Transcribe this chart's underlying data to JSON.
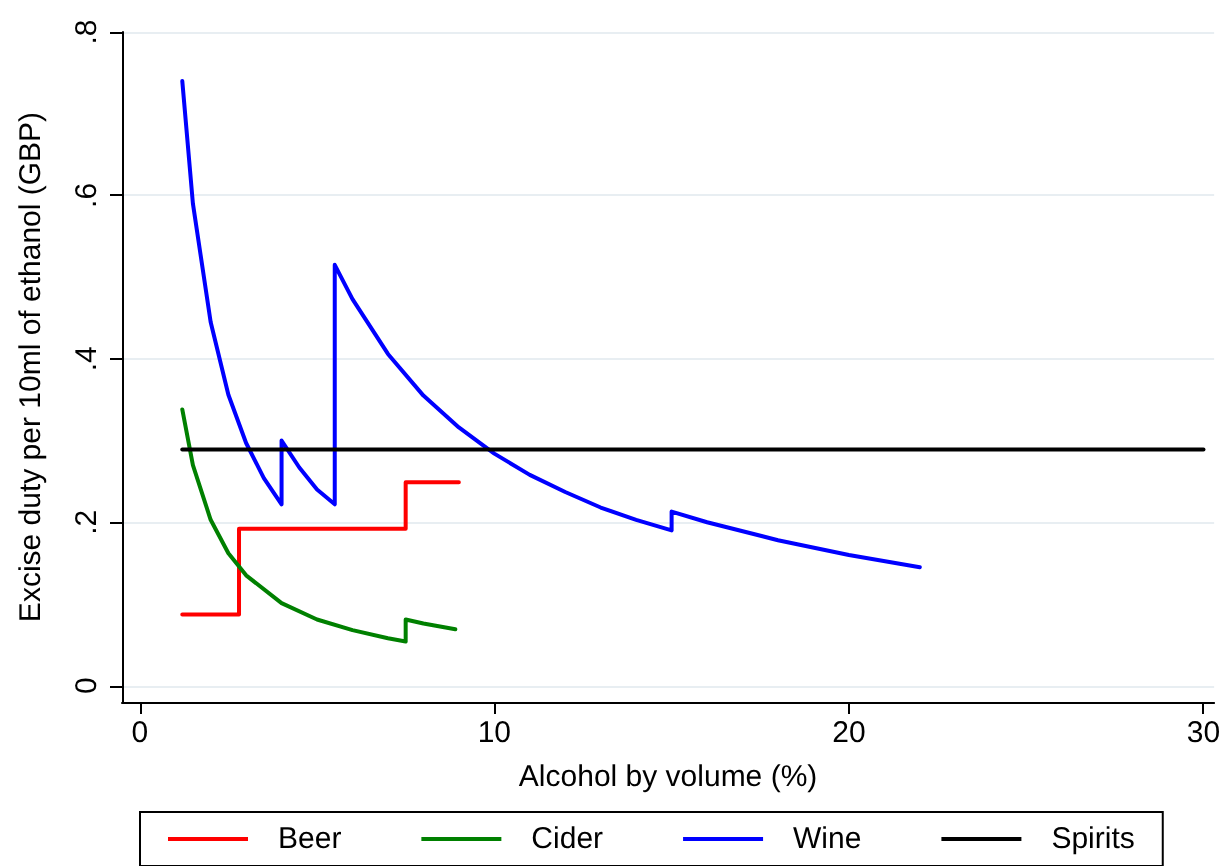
{
  "chart_data": {
    "type": "line",
    "xlabel": "Alcohol by volume (%)",
    "ylabel": "Excise duty per 10ml of ethanol (GBP)",
    "xlim": [
      -0.5,
      30.3
    ],
    "xticks": [
      0,
      10,
      20,
      30
    ],
    "ylim": [
      -0.02,
      0.8
    ],
    "yticks": [
      0,
      {
        "value": 0.2,
        "label": ".2"
      },
      {
        "value": 0.4,
        "label": ".4"
      },
      {
        "value": 0.6,
        "label": ".6"
      },
      {
        "value": 0.8,
        "label": ".8"
      }
    ],
    "grid": "y",
    "legend": "bottom",
    "marker": "none",
    "line_style": "solid",
    "series": [
      {
        "name": "Beer",
        "color": "#ff0000",
        "x": [
          1.2,
          2.8,
          2.8,
          7.5,
          7.5,
          9.0
        ],
        "values": [
          0.087,
          0.087,
          0.192,
          0.192,
          0.249,
          0.249
        ]
      },
      {
        "name": "Cider",
        "color": "#008000",
        "x": [
          1.2,
          1.5,
          2,
          2.5,
          3,
          4,
          5,
          6,
          7,
          7.5,
          7.5,
          8,
          8.9
        ],
        "values": [
          0.338,
          0.27,
          0.203,
          0.162,
          0.135,
          0.101,
          0.081,
          0.068,
          0.058,
          0.054,
          0.081,
          0.076,
          0.069
        ]
      },
      {
        "name": "Wine",
        "color": "#0000ff",
        "x": [
          1.2,
          1.5,
          2,
          2.5,
          3,
          3.5,
          4,
          4,
          4.5,
          5,
          5.5,
          5.5,
          6,
          7,
          8,
          9,
          10,
          11,
          12,
          13,
          14,
          15,
          15,
          16,
          18,
          20,
          22
        ],
        "values": [
          0.74,
          0.59,
          0.445,
          0.356,
          0.297,
          0.254,
          0.222,
          0.3,
          0.267,
          0.24,
          0.222,
          0.515,
          0.473,
          0.406,
          0.355,
          0.316,
          0.284,
          0.258,
          0.237,
          0.218,
          0.203,
          0.19,
          0.213,
          0.2,
          0.178,
          0.16,
          0.145
        ]
      },
      {
        "name": "Spirits",
        "color": "#000000",
        "x": [
          1.2,
          30
        ],
        "values": [
          0.289,
          0.289
        ]
      }
    ]
  }
}
